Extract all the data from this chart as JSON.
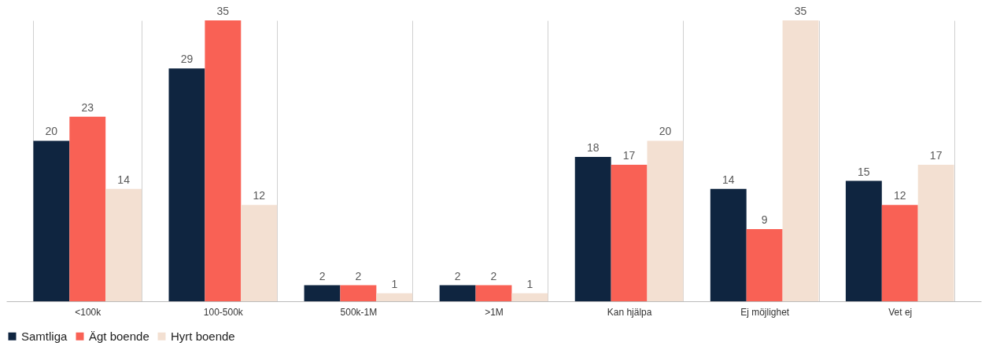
{
  "chart_data": {
    "type": "bar",
    "categories": [
      "<100k",
      "100-500k",
      "500k-1M",
      ">1M",
      "Kan hjälpa",
      "Ej möjlighet",
      "Vet ej"
    ],
    "series": [
      {
        "name": "Samtliga",
        "color": "#0f2540",
        "values": [
          20,
          29,
          2,
          2,
          18,
          14,
          15
        ]
      },
      {
        "name": "Ägt boende",
        "color": "#f96155",
        "values": [
          23,
          35,
          2,
          2,
          17,
          9,
          12
        ]
      },
      {
        "name": "Hyrt boende",
        "color": "#f3e0d2",
        "values": [
          14,
          12,
          1,
          1,
          20,
          35,
          17
        ]
      }
    ],
    "data_labels": true,
    "grid": "x",
    "legend": "bottom"
  }
}
